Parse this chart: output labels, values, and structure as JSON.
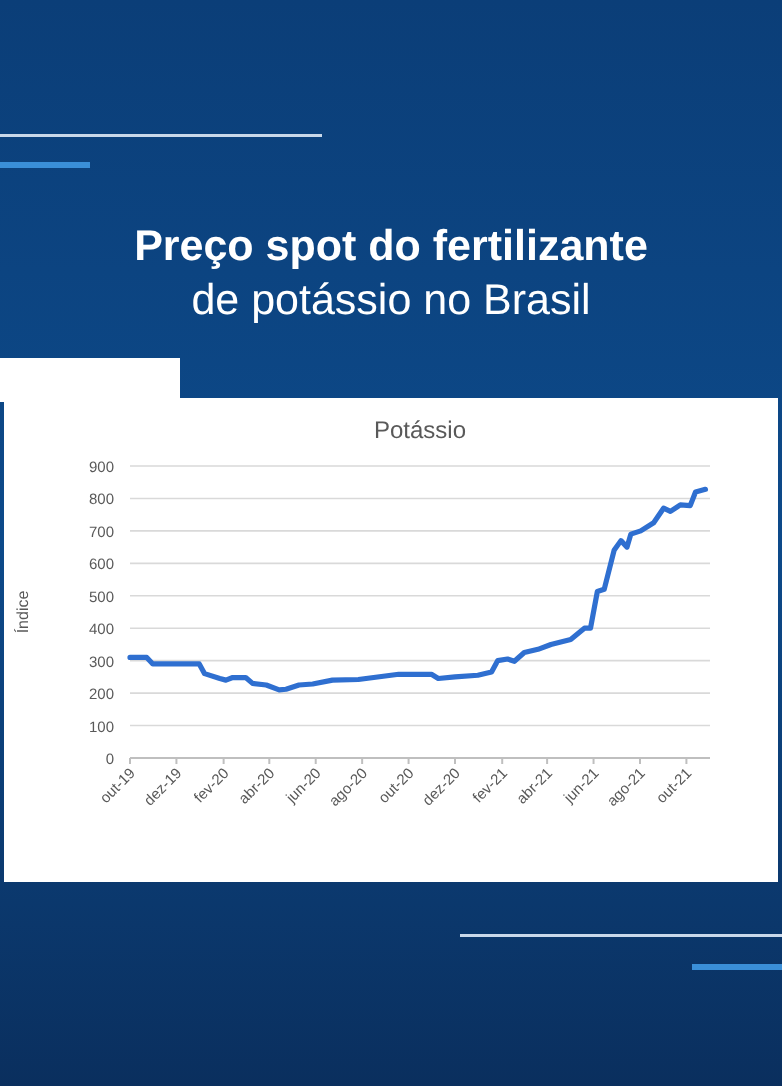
{
  "chart_data": {
    "type": "line",
    "title": "Potássio",
    "annotations": [
      "Preço spot do fertilizante",
      "de potássio no Brasil"
    ],
    "ylabel": "Índice",
    "x": [
      "2019-10-01",
      "2019-10-23",
      "2019-10-31",
      "2019-12-31",
      "2020-01-07",
      "2020-01-27",
      "2020-02-04",
      "2020-02-13",
      "2020-03-01",
      "2020-03-10",
      "2020-03-28",
      "2020-04-14",
      "2020-04-23",
      "2020-05-10",
      "2020-05-28",
      "2020-06-23",
      "2020-07-27",
      "2020-09-18",
      "2020-10-31",
      "2020-11-09",
      "2020-12-01",
      "2020-12-31",
      "2021-01-18",
      "2021-01-26",
      "2021-02-08",
      "2021-02-17",
      "2021-03-02",
      "2021-03-20",
      "2021-04-06",
      "2021-05-02",
      "2021-05-20",
      "2021-05-28",
      "2021-06-06",
      "2021-06-15",
      "2021-06-28",
      "2021-07-07",
      "2021-07-15",
      "2021-07-20",
      "2021-08-02",
      "2021-08-19",
      "2021-09-01",
      "2021-09-10",
      "2021-09-23",
      "2021-10-06",
      "2021-10-13",
      "2021-10-26"
    ],
    "series": [
      {
        "color": "#2f6fd0",
        "values": [
          310,
          310,
          290,
          290,
          260,
          245,
          240,
          248,
          248,
          230,
          225,
          210,
          212,
          225,
          228,
          240,
          242,
          258,
          258,
          245,
          250,
          255,
          265,
          300,
          305,
          298,
          325,
          335,
          350,
          365,
          400,
          400,
          513,
          520,
          640,
          670,
          650,
          690,
          700,
          725,
          770,
          760,
          780,
          778,
          820,
          828
        ]
      }
    ],
    "xlim": [
      "2019-10-01",
      "2021-11-01"
    ],
    "xticks": [
      {
        "value": "2019-10-01",
        "label": "out-19"
      },
      {
        "value": "2019-12-01",
        "label": "dez-19"
      },
      {
        "value": "2020-02-01",
        "label": "fev-20"
      },
      {
        "value": "2020-04-01",
        "label": "abr-20"
      },
      {
        "value": "2020-06-01",
        "label": "jun-20"
      },
      {
        "value": "2020-08-01",
        "label": "ago-20"
      },
      {
        "value": "2020-10-01",
        "label": "out-20"
      },
      {
        "value": "2020-12-01",
        "label": "dez-20"
      },
      {
        "value": "2021-02-01",
        "label": "fev-21"
      },
      {
        "value": "2021-04-01",
        "label": "abr-21"
      },
      {
        "value": "2021-06-01",
        "label": "jun-21"
      },
      {
        "value": "2021-08-01",
        "label": "ago-21"
      },
      {
        "value": "2021-10-01",
        "label": "out-21"
      }
    ],
    "ylim": [
      0,
      900
    ],
    "yticks": [
      0,
      100,
      200,
      300,
      400,
      500,
      600,
      700,
      800,
      900
    ],
    "grid": "y",
    "marker": "none",
    "line_style": "solid"
  }
}
